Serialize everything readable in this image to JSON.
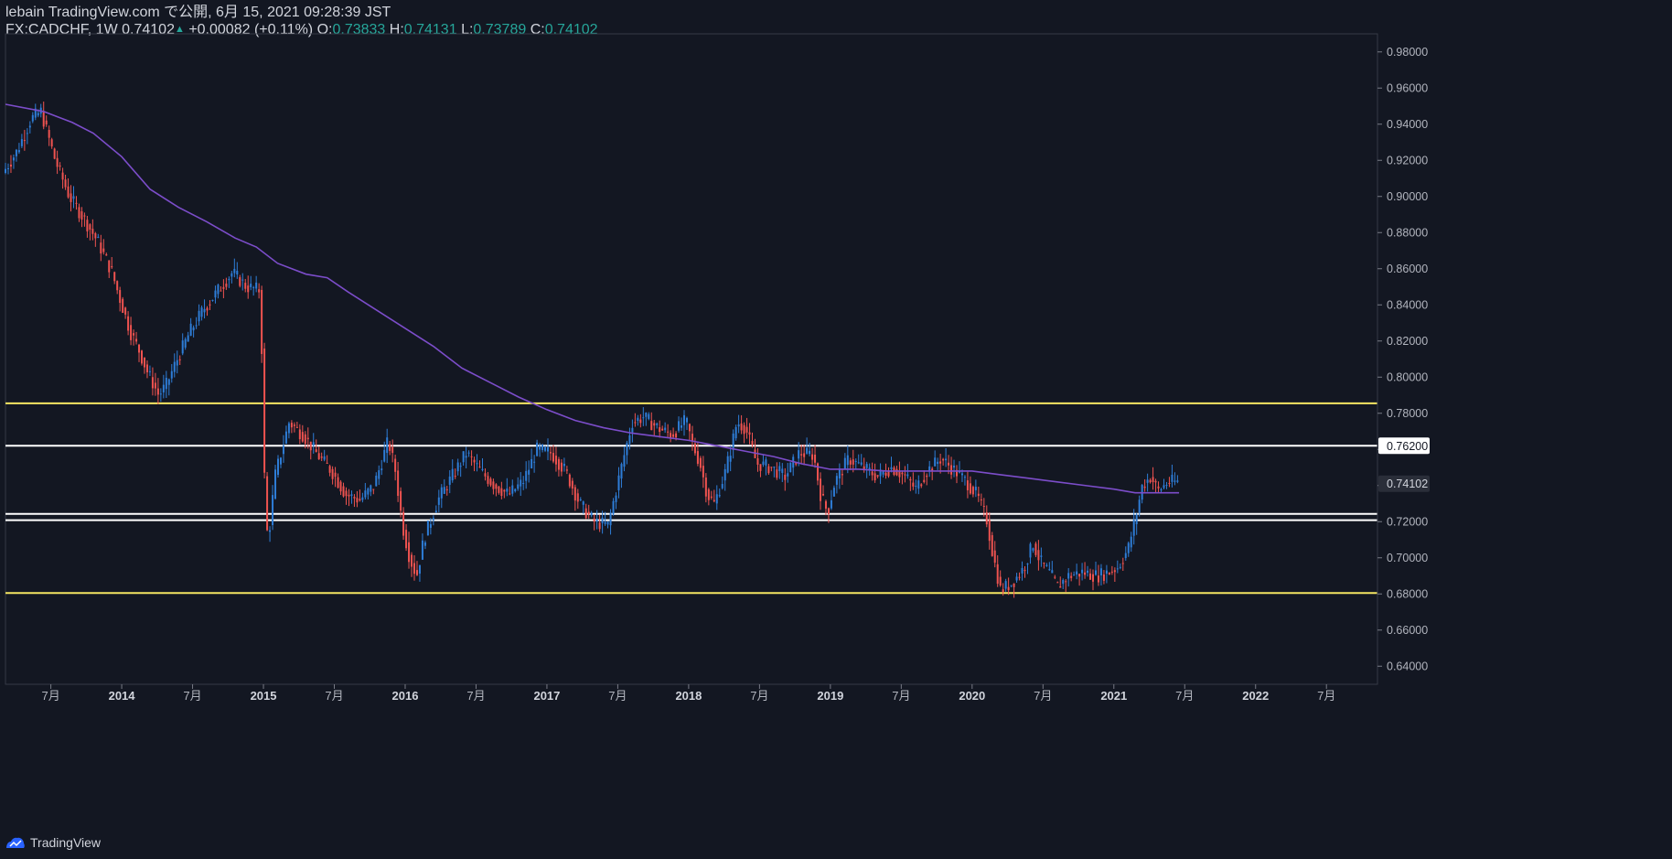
{
  "header": {
    "publisher_line": "lebain TradingView.com で公開, 6月 15, 2021 09:28:39 JST",
    "symbol": "FX:CADCHF, 1W",
    "last": "0.74102",
    "change": "+0.00082 (+0.11%)",
    "o_label": "O:",
    "o_value": "0.73833",
    "h_label": "H:",
    "h_value": "0.74131",
    "l_label": "L:",
    "l_value": "0.73789",
    "c_label": "C:",
    "c_value": "0.74102"
  },
  "footer": {
    "brand": "TradingView"
  },
  "colors": {
    "background": "#131722",
    "up": "#2e7dd7",
    "down": "#ef5350",
    "ma": "#7c4dca",
    "support_yellow": "#f5e663",
    "support_white": "#ffffff",
    "grid_border": "#363a45"
  },
  "chart_data": {
    "type": "candlestick",
    "title": "",
    "symbol": "FX:CADCHF",
    "timeframe": "1W",
    "ylim": [
      0.63,
      0.99
    ],
    "y_ticks": [
      "0.98000",
      "0.96000",
      "0.94000",
      "0.92000",
      "0.90000",
      "0.88000",
      "0.86000",
      "0.84000",
      "0.82000",
      "0.80000",
      "0.78000",
      "0.76000",
      "0.74000",
      "0.72000",
      "0.70000",
      "0.68000",
      "0.66000",
      "0.64000"
    ],
    "y_tick_values": [
      0.98,
      0.96,
      0.94,
      0.92,
      0.9,
      0.88,
      0.86,
      0.84,
      0.82,
      0.8,
      0.78,
      0.76,
      0.74,
      0.72,
      0.7,
      0.68,
      0.66,
      0.64
    ],
    "xlim": [
      2013.18,
      2022.86
    ],
    "x_ticks": [
      {
        "t": 2013.5,
        "label": "7月",
        "year": false
      },
      {
        "t": 2014.0,
        "label": "2014",
        "year": true
      },
      {
        "t": 2014.5,
        "label": "7月",
        "year": false
      },
      {
        "t": 2015.0,
        "label": "2015",
        "year": true
      },
      {
        "t": 2015.5,
        "label": "7月",
        "year": false
      },
      {
        "t": 2016.0,
        "label": "2016",
        "year": true
      },
      {
        "t": 2016.5,
        "label": "7月",
        "year": false
      },
      {
        "t": 2017.0,
        "label": "2017",
        "year": true
      },
      {
        "t": 2017.5,
        "label": "7月",
        "year": false
      },
      {
        "t": 2018.0,
        "label": "2018",
        "year": true
      },
      {
        "t": 2018.5,
        "label": "7月",
        "year": false
      },
      {
        "t": 2019.0,
        "label": "2019",
        "year": true
      },
      {
        "t": 2019.5,
        "label": "7月",
        "year": false
      },
      {
        "t": 2020.0,
        "label": "2020",
        "year": true
      },
      {
        "t": 2020.5,
        "label": "7月",
        "year": false
      },
      {
        "t": 2021.0,
        "label": "2021",
        "year": true
      },
      {
        "t": 2021.5,
        "label": "7月",
        "year": false
      },
      {
        "t": 2022.0,
        "label": "2022",
        "year": true
      },
      {
        "t": 2022.5,
        "label": "7月",
        "year": false
      }
    ],
    "price_path": [
      [
        2013.18,
        0.913
      ],
      [
        2013.28,
        0.925
      ],
      [
        2013.38,
        0.943
      ],
      [
        2013.45,
        0.947
      ],
      [
        2013.55,
        0.92
      ],
      [
        2013.65,
        0.9
      ],
      [
        2013.75,
        0.888
      ],
      [
        2013.85,
        0.875
      ],
      [
        2013.95,
        0.858
      ],
      [
        2014.0,
        0.845
      ],
      [
        2014.08,
        0.825
      ],
      [
        2014.14,
        0.815
      ],
      [
        2014.2,
        0.803
      ],
      [
        2014.28,
        0.79
      ],
      [
        2014.33,
        0.795
      ],
      [
        2014.4,
        0.808
      ],
      [
        2014.5,
        0.825
      ],
      [
        2014.6,
        0.838
      ],
      [
        2014.7,
        0.848
      ],
      [
        2014.8,
        0.858
      ],
      [
        2014.9,
        0.85
      ],
      [
        2015.0,
        0.848
      ],
      [
        2015.02,
        0.755
      ],
      [
        2015.05,
        0.707
      ],
      [
        2015.1,
        0.745
      ],
      [
        2015.2,
        0.775
      ],
      [
        2015.3,
        0.768
      ],
      [
        2015.4,
        0.757
      ],
      [
        2015.5,
        0.748
      ],
      [
        2015.6,
        0.735
      ],
      [
        2015.7,
        0.732
      ],
      [
        2015.8,
        0.74
      ],
      [
        2015.9,
        0.765
      ],
      [
        2015.95,
        0.748
      ],
      [
        2016.0,
        0.718
      ],
      [
        2016.05,
        0.7
      ],
      [
        2016.1,
        0.69
      ],
      [
        2016.15,
        0.71
      ],
      [
        2016.25,
        0.732
      ],
      [
        2016.35,
        0.745
      ],
      [
        2016.45,
        0.758
      ],
      [
        2016.55,
        0.748
      ],
      [
        2016.65,
        0.74
      ],
      [
        2016.75,
        0.735
      ],
      [
        2016.85,
        0.742
      ],
      [
        2016.95,
        0.76
      ],
      [
        2017.05,
        0.758
      ],
      [
        2017.15,
        0.748
      ],
      [
        2017.25,
        0.73
      ],
      [
        2017.35,
        0.72
      ],
      [
        2017.45,
        0.718
      ],
      [
        2017.55,
        0.752
      ],
      [
        2017.62,
        0.775
      ],
      [
        2017.7,
        0.778
      ],
      [
        2017.8,
        0.772
      ],
      [
        2017.9,
        0.768
      ],
      [
        2018.0,
        0.776
      ],
      [
        2018.05,
        0.762
      ],
      [
        2018.1,
        0.752
      ],
      [
        2018.15,
        0.735
      ],
      [
        2018.2,
        0.73
      ],
      [
        2018.28,
        0.748
      ],
      [
        2018.36,
        0.775
      ],
      [
        2018.42,
        0.772
      ],
      [
        2018.5,
        0.752
      ],
      [
        2018.6,
        0.75
      ],
      [
        2018.7,
        0.745
      ],
      [
        2018.8,
        0.758
      ],
      [
        2018.9,
        0.757
      ],
      [
        2018.95,
        0.735
      ],
      [
        2019.0,
        0.725
      ],
      [
        2019.05,
        0.742
      ],
      [
        2019.15,
        0.755
      ],
      [
        2019.25,
        0.75
      ],
      [
        2019.35,
        0.745
      ],
      [
        2019.45,
        0.75
      ],
      [
        2019.55,
        0.745
      ],
      [
        2019.62,
        0.738
      ],
      [
        2019.7,
        0.748
      ],
      [
        2019.8,
        0.755
      ],
      [
        2019.9,
        0.748
      ],
      [
        2019.98,
        0.742
      ],
      [
        2020.05,
        0.735
      ],
      [
        2020.12,
        0.722
      ],
      [
        2020.17,
        0.7
      ],
      [
        2020.22,
        0.682
      ],
      [
        2020.3,
        0.686
      ],
      [
        2020.38,
        0.694
      ],
      [
        2020.45,
        0.708
      ],
      [
        2020.5,
        0.698
      ],
      [
        2020.58,
        0.69
      ],
      [
        2020.62,
        0.684
      ],
      [
        2020.7,
        0.69
      ],
      [
        2020.8,
        0.692
      ],
      [
        2020.9,
        0.69
      ],
      [
        2020.98,
        0.692
      ],
      [
        2021.05,
        0.695
      ],
      [
        2021.12,
        0.705
      ],
      [
        2021.18,
        0.725
      ],
      [
        2021.22,
        0.74
      ],
      [
        2021.28,
        0.745
      ],
      [
        2021.33,
        0.737
      ],
      [
        2021.4,
        0.742
      ],
      [
        2021.46,
        0.742
      ]
    ],
    "candles_per_year": 52,
    "moving_average": {
      "label": "",
      "color": "#7c4dca",
      "points": [
        [
          2013.18,
          0.951
        ],
        [
          2013.45,
          0.947
        ],
        [
          2013.65,
          0.941
        ],
        [
          2013.8,
          0.935
        ],
        [
          2014.0,
          0.922
        ],
        [
          2014.2,
          0.904
        ],
        [
          2014.4,
          0.894
        ],
        [
          2014.6,
          0.886
        ],
        [
          2014.8,
          0.877
        ],
        [
          2014.95,
          0.872
        ],
        [
          2015.1,
          0.863
        ],
        [
          2015.3,
          0.857
        ],
        [
          2015.45,
          0.855
        ],
        [
          2015.6,
          0.847
        ],
        [
          2015.8,
          0.837
        ],
        [
          2016.0,
          0.827
        ],
        [
          2016.2,
          0.817
        ],
        [
          2016.4,
          0.805
        ],
        [
          2016.6,
          0.797
        ],
        [
          2016.8,
          0.789
        ],
        [
          2017.0,
          0.782
        ],
        [
          2017.2,
          0.776
        ],
        [
          2017.4,
          0.772
        ],
        [
          2017.6,
          0.769
        ],
        [
          2017.8,
          0.767
        ],
        [
          2018.0,
          0.765
        ],
        [
          2018.2,
          0.762
        ],
        [
          2018.4,
          0.759
        ],
        [
          2018.6,
          0.756
        ],
        [
          2018.8,
          0.752
        ],
        [
          2019.0,
          0.749
        ],
        [
          2019.2,
          0.749
        ],
        [
          2019.4,
          0.748
        ],
        [
          2019.6,
          0.748
        ],
        [
          2019.8,
          0.748
        ],
        [
          2020.0,
          0.748
        ],
        [
          2020.2,
          0.746
        ],
        [
          2020.4,
          0.744
        ],
        [
          2020.6,
          0.742
        ],
        [
          2020.8,
          0.74
        ],
        [
          2021.0,
          0.738
        ],
        [
          2021.15,
          0.736
        ],
        [
          2021.3,
          0.736
        ],
        [
          2021.46,
          0.736
        ]
      ]
    },
    "horizontal_lines": [
      {
        "name": "resistance-yellow",
        "price": 0.7855,
        "color": "#f5e663"
      },
      {
        "name": "resistance-white",
        "price": 0.762,
        "color": "#ffffff"
      },
      {
        "name": "support-white-upper",
        "price": 0.7243,
        "color": "#ffffff"
      },
      {
        "name": "support-white-lower",
        "price": 0.7208,
        "color": "#ffffff"
      },
      {
        "name": "support-yellow",
        "price": 0.6805,
        "color": "#f5e663"
      }
    ],
    "price_badges": [
      {
        "name": "line-price-badge",
        "price": 0.762,
        "label": "0.76200",
        "bg": "#ffffff",
        "fg": "#131722"
      },
      {
        "name": "last-price-badge",
        "price": 0.74102,
        "label": "0.74102",
        "bg": "#2a2e39",
        "fg": "#d1d4dc"
      }
    ]
  }
}
